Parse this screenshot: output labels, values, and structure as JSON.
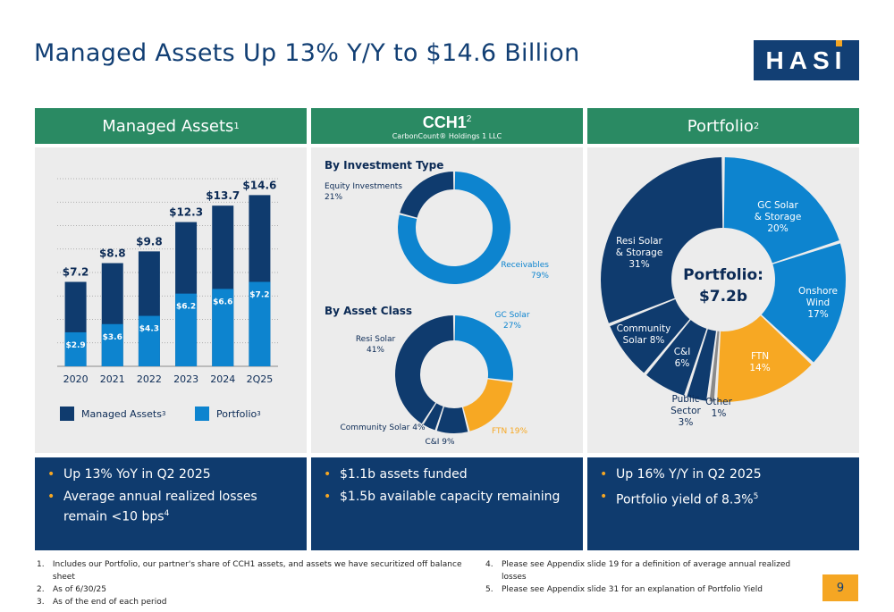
{
  "title": "Managed Assets Up 13% Y/Y to $14.6 Billion",
  "logo": "HASI",
  "colors": {
    "navy": "#0f3b6e",
    "blue": "#0d84cf",
    "orange": "#f7a823",
    "green": "#2a8a63",
    "gray": "#8a8a8a"
  },
  "left": {
    "header": "Managed Assets",
    "header_sup": "1",
    "legend_managed": "Managed Assets",
    "legend_managed_sup": "3",
    "legend_portfolio": "Portfolio",
    "legend_portfolio_sup": "3",
    "bullets": [
      "Up 13% YoY in Q2 2025",
      "Average annual realized losses remain <10 bps"
    ],
    "bullet2_sup": "4"
  },
  "middle": {
    "header_name": "CCH1",
    "header_sup": "2",
    "header_sub": "CarbonCount® Holdings 1 LLC",
    "bullets": [
      "$1.1b assets funded",
      "$1.5b available capacity remaining"
    ]
  },
  "right": {
    "header": "Portfolio",
    "header_sup": "2",
    "center_label": "Portfolio:",
    "center_value": "$7.2b",
    "bullets": [
      "Up 16% Y/Y in Q2 2025",
      "Portfolio yield of 8.3%"
    ],
    "bullet2_sup": "5"
  },
  "chart_data": [
    {
      "type": "bar",
      "stacked_overlay": true,
      "categories": [
        "2020",
        "2021",
        "2022",
        "2023",
        "2024",
        "2Q25"
      ],
      "series": [
        {
          "name": "Managed Assets",
          "values": [
            7.2,
            8.8,
            9.8,
            12.3,
            13.7,
            14.6
          ],
          "labels": [
            "$7.2",
            "$8.8",
            "$9.8",
            "$12.3",
            "$13.7",
            "$14.6"
          ],
          "color": "#0f3b6e"
        },
        {
          "name": "Portfolio",
          "values": [
            2.9,
            3.6,
            4.3,
            6.2,
            6.6,
            7.2
          ],
          "labels": [
            "$2.9",
            "$3.6",
            "$4.3",
            "$6.2",
            "$6.6",
            "$7.2"
          ],
          "color": "#0d84cf"
        }
      ],
      "ylim": [
        0,
        16
      ],
      "grid": "dotted"
    },
    {
      "type": "pie",
      "donut": true,
      "title": "By Investment Type",
      "slices": [
        {
          "label": "Receivables",
          "pct_label": "79%",
          "value": 79,
          "color": "#0d84cf"
        },
        {
          "label": "Equity Investments",
          "pct_label": "21%",
          "value": 21,
          "color": "#0f3b6e"
        }
      ]
    },
    {
      "type": "pie",
      "donut": true,
      "title": "By Asset Class",
      "slices": [
        {
          "label": "GC Solar",
          "pct_label": "27%",
          "value": 27,
          "color": "#0d84cf"
        },
        {
          "label": "FTN",
          "pct_label": "19%",
          "value": 19,
          "color": "#f7a823"
        },
        {
          "label": "C&I",
          "pct_label": "9%",
          "value": 9,
          "color": "#0f3b6e"
        },
        {
          "label": "Community Solar",
          "pct_label": "4%",
          "value": 4,
          "color": "#0f3b6e"
        },
        {
          "label": "Resi Solar",
          "pct_label": "41%",
          "value": 41,
          "color": "#0f3b6e"
        }
      ]
    },
    {
      "type": "pie",
      "donut": true,
      "slices": [
        {
          "label": "GC Solar & Storage",
          "pct_label": "20%",
          "value": 20,
          "color": "#0d84cf"
        },
        {
          "label": "Onshore Wind",
          "pct_label": "17%",
          "value": 17,
          "color": "#0d84cf"
        },
        {
          "label": "FTN",
          "pct_label": "14%",
          "value": 14,
          "color": "#f7a823"
        },
        {
          "label": "Other",
          "pct_label": "1%",
          "value": 1,
          "color": "#8a8a8a"
        },
        {
          "label": "Public Sector",
          "pct_label": "3%",
          "value": 3,
          "color": "#0f3b6e"
        },
        {
          "label": "C&I",
          "pct_label": "6%",
          "value": 6,
          "color": "#0f3b6e"
        },
        {
          "label": "Community Solar",
          "pct_label": "8%",
          "value": 8,
          "color": "#0f3b6e"
        },
        {
          "label": "Resi Solar & Storage",
          "pct_label": "31%",
          "value": 31,
          "color": "#0f3b6e"
        }
      ]
    }
  ],
  "footnotes_left": [
    {
      "n": "1.",
      "text": "Includes our Portfolio, our partner's share of CCH1 assets, and assets we have securitized off balance sheet"
    },
    {
      "n": "2.",
      "text": "As of 6/30/25"
    },
    {
      "n": "3.",
      "text": "As of the end of each period"
    }
  ],
  "footnotes_right": [
    {
      "n": "4.",
      "text": "Please see Appendix slide 19 for a definition of average annual realized losses"
    },
    {
      "n": "5.",
      "text": "Please see Appendix slide 31 for an explanation of Portfolio Yield"
    }
  ],
  "page_number": "9"
}
